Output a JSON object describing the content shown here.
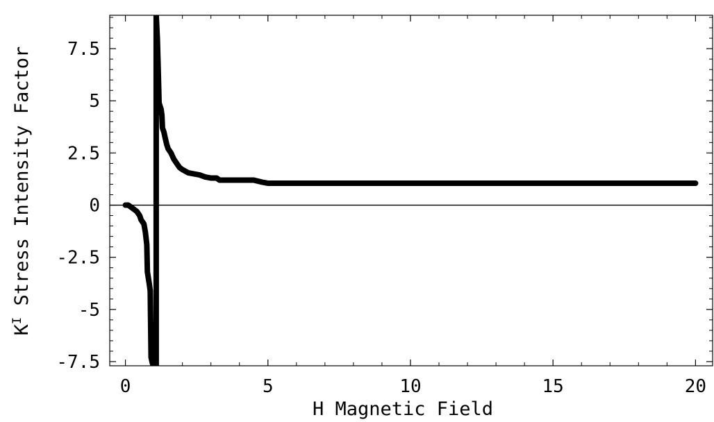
{
  "chart_data": {
    "type": "line",
    "xlabel": "H   Magnetic   Field",
    "ylabel_base": "K",
    "ylabel_superscript": "I",
    "ylabel_rest": " Stress Intensity Factor",
    "xlim": [
      -0.55,
      20.6
    ],
    "ylim": [
      -7.7,
      9.1
    ],
    "xticks": [
      {
        "value": 0,
        "label": "0"
      },
      {
        "value": 5,
        "label": "5"
      },
      {
        "value": 10,
        "label": "10"
      },
      {
        "value": 15,
        "label": "15"
      },
      {
        "value": 20,
        "label": "20"
      }
    ],
    "yticks": [
      {
        "value": -7.5,
        "label": "-7.5"
      },
      {
        "value": -5,
        "label": "-5"
      },
      {
        "value": -2.5,
        "label": "-2.5"
      },
      {
        "value": 0,
        "label": "0"
      },
      {
        "value": 2.5,
        "label": "2.5"
      },
      {
        "value": 5,
        "label": "5"
      },
      {
        "value": 7.5,
        "label": "7.5"
      }
    ],
    "grid": false,
    "line_color": "#000000",
    "series": [
      {
        "values": [
          [
            0,
            0
          ],
          [
            0.1,
            0
          ],
          [
            0.2,
            -0.1
          ],
          [
            0.3,
            -0.2
          ],
          [
            0.4,
            -0.3
          ],
          [
            0.5,
            -0.5
          ],
          [
            0.55,
            -0.7
          ],
          [
            0.65,
            -0.9
          ],
          [
            0.7,
            -1.3
          ],
          [
            0.75,
            -1.9
          ],
          [
            0.77,
            -3.2
          ],
          [
            0.83,
            -3.7
          ],
          [
            0.87,
            -4.1
          ],
          [
            0.9,
            -7.3
          ],
          [
            0.95,
            -7.6
          ],
          [
            1.0,
            -7.7
          ],
          [
            1.08,
            -7.7
          ],
          [
            1.08,
            9.1
          ],
          [
            1.12,
            8.0
          ],
          [
            1.15,
            6.5
          ],
          [
            1.18,
            4.9
          ],
          [
            1.25,
            4.6
          ],
          [
            1.28,
            4.3
          ],
          [
            1.3,
            3.7
          ],
          [
            1.35,
            3.5
          ],
          [
            1.4,
            3.2
          ],
          [
            1.45,
            2.9
          ],
          [
            1.5,
            2.7
          ],
          [
            1.6,
            2.5
          ],
          [
            1.7,
            2.2
          ],
          [
            1.8,
            2.0
          ],
          [
            1.9,
            1.8
          ],
          [
            2.0,
            1.7
          ],
          [
            2.2,
            1.55
          ],
          [
            2.4,
            1.5
          ],
          [
            2.6,
            1.45
          ],
          [
            2.8,
            1.35
          ],
          [
            3.0,
            1.3
          ],
          [
            3.2,
            1.3
          ],
          [
            3.3,
            1.2
          ],
          [
            3.5,
            1.2
          ],
          [
            4.0,
            1.2
          ],
          [
            4.5,
            1.2
          ],
          [
            4.8,
            1.1
          ],
          [
            5.0,
            1.05
          ],
          [
            6.0,
            1.05
          ],
          [
            8.0,
            1.05
          ],
          [
            10.0,
            1.05
          ],
          [
            12.0,
            1.05
          ],
          [
            14.0,
            1.05
          ],
          [
            16.0,
            1.05
          ],
          [
            18.0,
            1.05
          ],
          [
            20.0,
            1.05
          ]
        ]
      }
    ]
  }
}
